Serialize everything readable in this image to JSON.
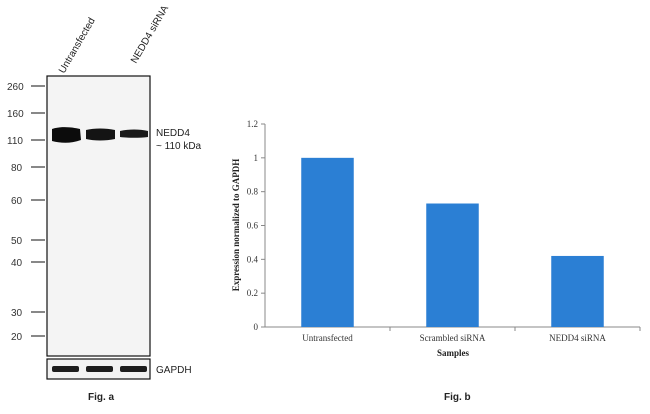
{
  "fig_a": {
    "caption": "Fig. a",
    "lanes": [
      "Untransfected",
      "NEDD4 siRNA"
    ],
    "mw_markers": [
      "260",
      "160",
      "110",
      "80",
      "60",
      "50",
      "40",
      "30",
      "20"
    ],
    "band_label": "NEDD4",
    "band_size": "~ 110 kDa",
    "loading_control": "GAPDH"
  },
  "fig_b": {
    "caption": "Fig. b"
  },
  "chart_data": {
    "type": "bar",
    "categories": [
      "Untransfected",
      "Scrambled siRNA",
      "NEDD4 siRNA"
    ],
    "values": [
      1.0,
      0.73,
      0.42
    ],
    "xlabel": "Samples",
    "ylabel": "Expression normalized to GAPDH",
    "ylim": [
      0,
      1.2
    ],
    "yticks": [
      "0",
      "0.2",
      "0.4",
      "0.6",
      "0.8",
      "1",
      "1.2"
    ],
    "grid": false,
    "bar_color": "#2b7fd4"
  }
}
